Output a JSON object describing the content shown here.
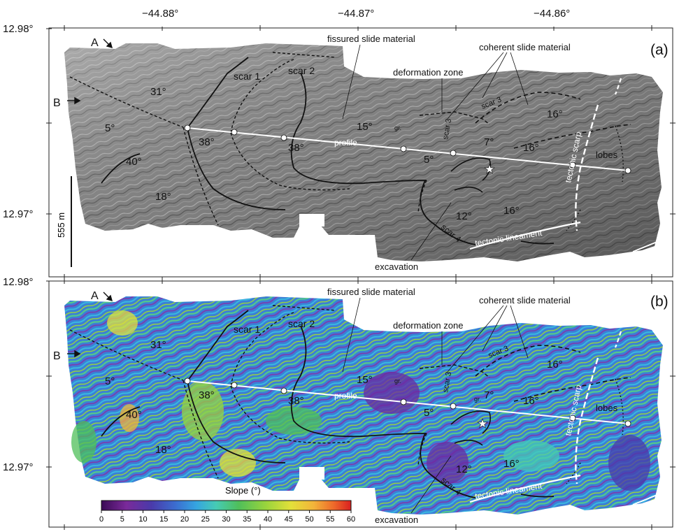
{
  "axes": {
    "lon_ticks": [
      "−44.88°",
      "−44.87°",
      "−44.86°"
    ],
    "lat_ticks_a": [
      "12.98°",
      "12.97°"
    ],
    "lat_ticks_b": [
      "12.98°",
      "12.97°"
    ]
  },
  "panel_a": {
    "label": "(a)",
    "title_shading": "grayscale hillshade",
    "scale_bar": "555 m",
    "markers": {
      "a": "A",
      "b": "B"
    },
    "annotations": {
      "fissured": "fissured slide material",
      "coherent": "coherent slide material",
      "deformation": "deformation zone",
      "scar1": "scar 1",
      "scar2": "scar 2",
      "scar3a": "scar 3",
      "scar3b": "scar 3",
      "scar4": "scar 4",
      "profile": "profile",
      "tectonic_scarp": "tectonic scarp",
      "tectonic_lineament": "tectonic lineament",
      "lobes": "lobes",
      "excavation": "excavation",
      "gr": "gr."
    },
    "slopes": {
      "s31": "31°",
      "s5a": "5°",
      "s40": "40°",
      "s18": "18°",
      "s38a": "38°",
      "s38b": "38°",
      "s15": "15°",
      "s5b": "5°",
      "s7": "7°",
      "s16a": "16°",
      "s16b": "16°",
      "s16c": "16°",
      "s12": "12°"
    }
  },
  "panel_b": {
    "label": "(b)",
    "markers": {
      "a": "A",
      "b": "B"
    },
    "annotations": {
      "fissured": "fissured slide material",
      "coherent": "coherent slide material",
      "deformation": "deformation zone",
      "scar1": "scar 1",
      "scar2": "scar 2",
      "scar3a": "scar 3",
      "scar3b": "scar 3",
      "scar4": "scar 4",
      "profile": "profile",
      "tectonic_scarp": "tectonic scarp",
      "tectonic_lineament": "tectonic lineament",
      "lobes": "lobes",
      "excavation": "excavation",
      "gr1": "gr.",
      "gr2": "gr."
    },
    "slopes": {
      "s31": "31°",
      "s5a": "5°",
      "s40": "40°",
      "s18": "18°",
      "s38a": "38°",
      "s38b": "38°",
      "s15": "15°",
      "s5b": "5°",
      "s7": "7°",
      "s16a": "16°",
      "s16b": "16°",
      "s16c": "16°",
      "s12": "12°"
    },
    "colorbar": {
      "title": "Slope (°)",
      "ticks": [
        "0",
        "5",
        "10",
        "15",
        "20",
        "25",
        "30",
        "35",
        "40",
        "45",
        "50",
        "55",
        "60"
      ],
      "colors": [
        "#3a0a55",
        "#7a2a9a",
        "#4a3aaa",
        "#3b6fd1",
        "#35a5e0",
        "#46cbb4",
        "#4fbf5a",
        "#9ad43c",
        "#e3e03a",
        "#f2b43a",
        "#ee6a2a",
        "#d92020"
      ]
    }
  }
}
